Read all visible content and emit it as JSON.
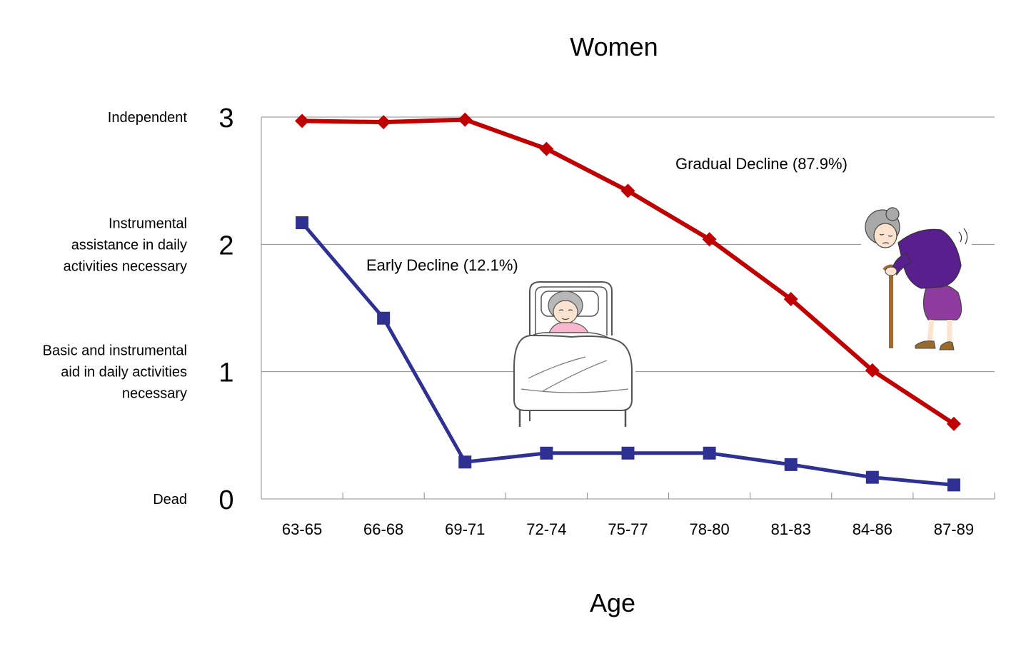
{
  "chart_data": {
    "type": "line",
    "title": "Women",
    "xlabel": "Age",
    "ylabel": "",
    "categories": [
      "63-65",
      "66-68",
      "69-71",
      "72-74",
      "75-77",
      "78-80",
      "81-83",
      "84-86",
      "87-89"
    ],
    "ylim": [
      0,
      3
    ],
    "yticks": [
      "0",
      "1",
      "2",
      "3"
    ],
    "y_category_labels": [
      {
        "value": 3,
        "lines": [
          "Independent"
        ]
      },
      {
        "value": 2,
        "lines": [
          "Instrumental",
          "assistance in daily",
          "activities necessary"
        ]
      },
      {
        "value": 1,
        "lines": [
          "Basic and instrumental",
          "aid in daily activities",
          "necessary"
        ]
      },
      {
        "value": 0,
        "lines": [
          "Dead"
        ]
      }
    ],
    "grid": "horizontal",
    "series": [
      {
        "label": "Gradual Decline (87.9%)",
        "color": "#c00000",
        "marker": "diamond",
        "values": [
          2.97,
          2.96,
          2.98,
          2.75,
          2.42,
          2.04,
          1.57,
          1.01,
          0.59
        ]
      },
      {
        "label": "Early Decline (12.1%)",
        "color": "#2e3192",
        "marker": "square",
        "values": [
          2.17,
          1.42,
          0.29,
          0.36,
          0.36,
          0.36,
          0.27,
          0.17,
          0.11
        ]
      }
    ]
  },
  "illustrations": {
    "bed": "elderly-woman-in-bed-illustration",
    "walking": "elderly-woman-with-cane-illustration"
  }
}
